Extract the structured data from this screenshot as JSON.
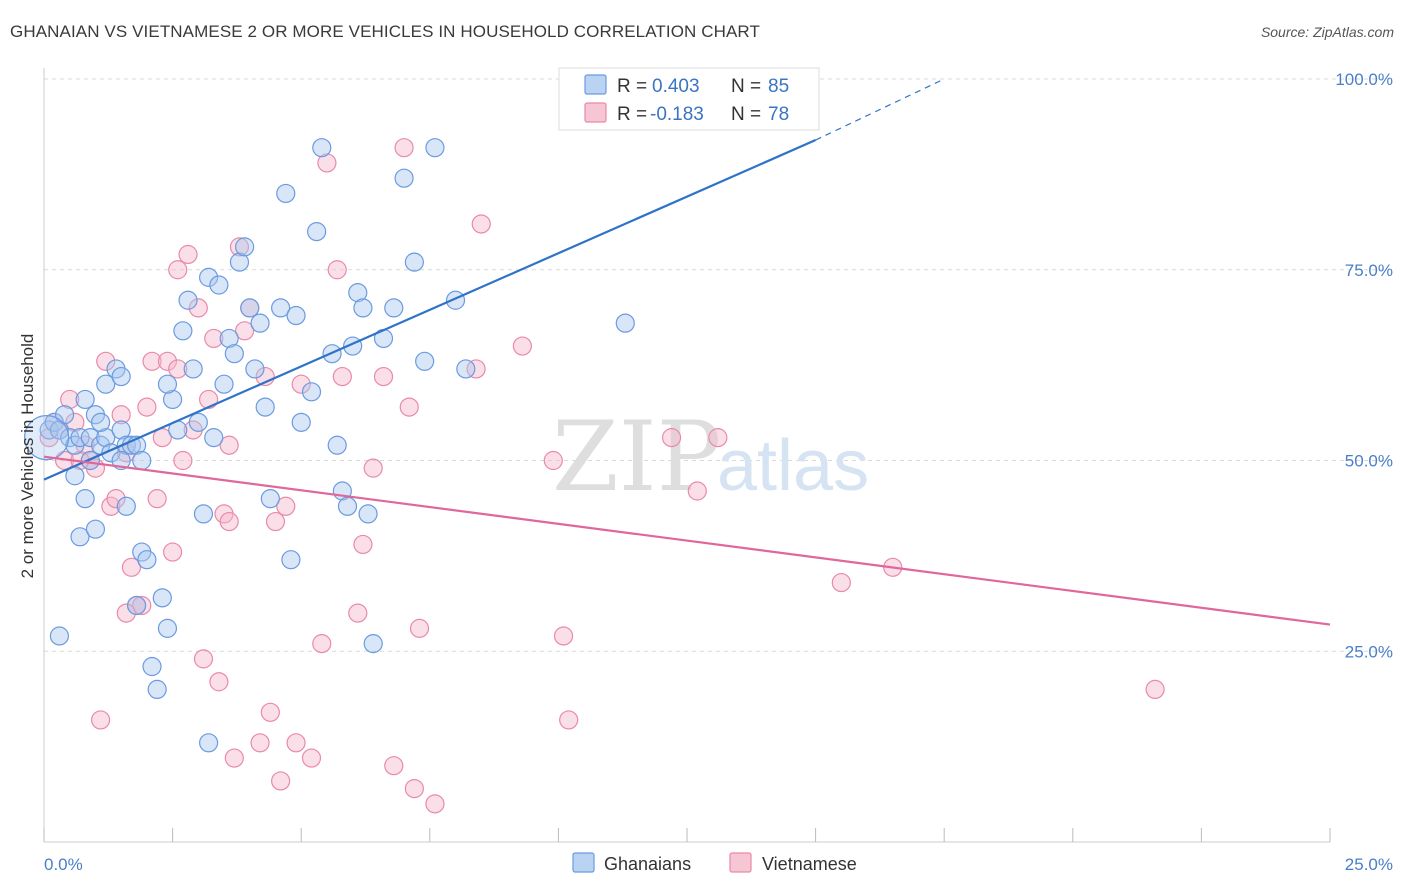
{
  "title": "GHANAIAN VS VIETNAMESE 2 OR MORE VEHICLES IN HOUSEHOLD CORRELATION CHART",
  "source_prefix": "Source: ",
  "source_name": "ZipAtlas.com",
  "watermark": {
    "zip": "ZIP",
    "atlas": "atlas"
  },
  "colors": {
    "ghanaian_fill": "#a9c8f0",
    "ghanaian_stroke": "#6a9be0",
    "ghanaian_line": "#2f73c9",
    "vietnamese_fill": "#f5b8cb",
    "vietnamese_stroke": "#e98aa8",
    "vietnamese_line": "#e0679a",
    "tick_text": "#4a7fc8",
    "grid": "#d9d9d9"
  },
  "legend": {
    "rows": [
      {
        "r_label": "R = ",
        "r_value": "0.403",
        "n_label": "N = ",
        "n_value": "85"
      },
      {
        "r_label": "R = ",
        "r_value": "-0.183",
        "n_label": "N = ",
        "n_value": "78"
      }
    ]
  },
  "chart_data": {
    "type": "scatter",
    "title": "GHANAIAN VS VIETNAMESE 2 OR MORE VEHICLES IN HOUSEHOLD CORRELATION CHART",
    "xlabel": "",
    "ylabel": "2 or more Vehicles in Household",
    "xlim": [
      0,
      25
    ],
    "ylim": [
      0,
      100
    ],
    "x_tick_labels": [
      "0.0%",
      "25.0%"
    ],
    "y_ticks": [
      25,
      50,
      75,
      100
    ],
    "y_tick_labels": [
      "25.0%",
      "50.0%",
      "75.0%",
      "100.0%"
    ],
    "grid": true,
    "series": [
      {
        "name": "Ghanaians",
        "r": 0.403,
        "n": 85,
        "trend": {
          "x": [
            0,
            15
          ],
          "y": [
            47.5,
            92
          ],
          "dashed_to": [
            17.5,
            100
          ]
        },
        "points": [
          [
            0.1,
            54
          ],
          [
            0.2,
            55
          ],
          [
            0.3,
            54
          ],
          [
            0.4,
            56
          ],
          [
            0.5,
            53
          ],
          [
            0.6,
            52
          ],
          [
            0.7,
            53
          ],
          [
            0.8,
            58
          ],
          [
            0.9,
            53
          ],
          [
            1.0,
            56
          ],
          [
            1.1,
            52
          ],
          [
            1.2,
            53
          ],
          [
            1.3,
            51
          ],
          [
            1.5,
            54
          ],
          [
            1.6,
            52
          ],
          [
            1.7,
            52
          ],
          [
            1.8,
            52
          ],
          [
            1.9,
            50
          ],
          [
            0.3,
            27
          ],
          [
            0.6,
            48
          ],
          [
            0.7,
            40
          ],
          [
            0.8,
            45
          ],
          [
            1.0,
            41
          ],
          [
            1.1,
            55
          ],
          [
            1.2,
            60
          ],
          [
            1.4,
            62
          ],
          [
            1.5,
            61
          ],
          [
            1.6,
            44
          ],
          [
            1.8,
            31
          ],
          [
            1.9,
            38
          ],
          [
            2.0,
            37
          ],
          [
            2.1,
            23
          ],
          [
            2.2,
            20
          ],
          [
            2.3,
            32
          ],
          [
            2.4,
            28
          ],
          [
            2.5,
            58
          ],
          [
            2.6,
            54
          ],
          [
            2.7,
            67
          ],
          [
            2.8,
            71
          ],
          [
            2.9,
            62
          ],
          [
            3.0,
            55
          ],
          [
            3.1,
            43
          ],
          [
            3.2,
            74
          ],
          [
            3.3,
            53
          ],
          [
            3.4,
            73
          ],
          [
            3.5,
            60
          ],
          [
            3.6,
            66
          ],
          [
            3.7,
            64
          ],
          [
            3.8,
            76
          ],
          [
            3.9,
            78
          ],
          [
            4.0,
            70
          ],
          [
            4.1,
            62
          ],
          [
            4.2,
            68
          ],
          [
            4.3,
            57
          ],
          [
            4.4,
            45
          ],
          [
            4.6,
            70
          ],
          [
            4.8,
            37
          ],
          [
            4.9,
            69
          ],
          [
            5.0,
            55
          ],
          [
            5.2,
            59
          ],
          [
            5.3,
            80
          ],
          [
            5.4,
            91
          ],
          [
            5.6,
            64
          ],
          [
            5.7,
            52
          ],
          [
            5.8,
            46
          ],
          [
            5.9,
            44
          ],
          [
            6.0,
            65
          ],
          [
            6.1,
            72
          ],
          [
            6.2,
            70
          ],
          [
            6.3,
            43
          ],
          [
            6.4,
            26
          ],
          [
            6.6,
            66
          ],
          [
            6.8,
            70
          ],
          [
            7.0,
            87
          ],
          [
            7.2,
            76
          ],
          [
            7.4,
            63
          ],
          [
            7.6,
            91
          ],
          [
            8.0,
            71
          ],
          [
            8.2,
            62
          ],
          [
            11.3,
            68
          ],
          [
            3.2,
            13
          ],
          [
            1.5,
            50
          ],
          [
            2.4,
            60
          ],
          [
            0.9,
            50
          ],
          [
            4.7,
            85
          ]
        ]
      },
      {
        "name": "Vietnamese",
        "r": -0.183,
        "n": 78,
        "trend": {
          "x": [
            0,
            25
          ],
          "y": [
            50.5,
            28.5
          ]
        },
        "points": [
          [
            0.1,
            53
          ],
          [
            0.2,
            55
          ],
          [
            0.3,
            54
          ],
          [
            0.4,
            50
          ],
          [
            0.5,
            58
          ],
          [
            0.6,
            55
          ],
          [
            0.8,
            52
          ],
          [
            0.9,
            50
          ],
          [
            1.0,
            49
          ],
          [
            1.1,
            16
          ],
          [
            1.2,
            63
          ],
          [
            1.3,
            44
          ],
          [
            1.4,
            45
          ],
          [
            1.5,
            56
          ],
          [
            1.6,
            51
          ],
          [
            1.7,
            36
          ],
          [
            1.8,
            31
          ],
          [
            1.9,
            31
          ],
          [
            2.0,
            57
          ],
          [
            2.1,
            63
          ],
          [
            2.2,
            45
          ],
          [
            2.3,
            53
          ],
          [
            2.4,
            63
          ],
          [
            2.5,
            38
          ],
          [
            2.6,
            62
          ],
          [
            2.7,
            50
          ],
          [
            2.8,
            77
          ],
          [
            2.9,
            54
          ],
          [
            3.0,
            70
          ],
          [
            3.1,
            24
          ],
          [
            3.2,
            58
          ],
          [
            3.3,
            66
          ],
          [
            3.4,
            21
          ],
          [
            3.5,
            43
          ],
          [
            3.6,
            52
          ],
          [
            3.7,
            11
          ],
          [
            3.8,
            78
          ],
          [
            3.9,
            67
          ],
          [
            4.0,
            70
          ],
          [
            4.2,
            13
          ],
          [
            4.3,
            61
          ],
          [
            4.4,
            17
          ],
          [
            4.5,
            42
          ],
          [
            4.6,
            8
          ],
          [
            4.7,
            44
          ],
          [
            4.9,
            13
          ],
          [
            5.0,
            60
          ],
          [
            5.2,
            11
          ],
          [
            5.4,
            26
          ],
          [
            5.5,
            89
          ],
          [
            5.7,
            75
          ],
          [
            5.8,
            61
          ],
          [
            6.1,
            30
          ],
          [
            6.2,
            39
          ],
          [
            6.4,
            49
          ],
          [
            6.6,
            61
          ],
          [
            6.8,
            10
          ],
          [
            7.0,
            91
          ],
          [
            7.1,
            57
          ],
          [
            7.3,
            28
          ],
          [
            7.6,
            5
          ],
          [
            7.2,
            7
          ],
          [
            8.5,
            81
          ],
          [
            8.4,
            62
          ],
          [
            9.3,
            65
          ],
          [
            9.9,
            50
          ],
          [
            10.1,
            27
          ],
          [
            10.2,
            16
          ],
          [
            12.7,
            46
          ],
          [
            12.2,
            53
          ],
          [
            15.5,
            34
          ],
          [
            16.5,
            36
          ],
          [
            21.6,
            20
          ],
          [
            13.1,
            53
          ],
          [
            2.6,
            75
          ],
          [
            0.7,
            50
          ],
          [
            1.6,
            30
          ],
          [
            3.6,
            42
          ]
        ]
      }
    ]
  },
  "bottom_legend": [
    {
      "label": "Ghanaians"
    },
    {
      "label": "Vietnamese"
    }
  ]
}
